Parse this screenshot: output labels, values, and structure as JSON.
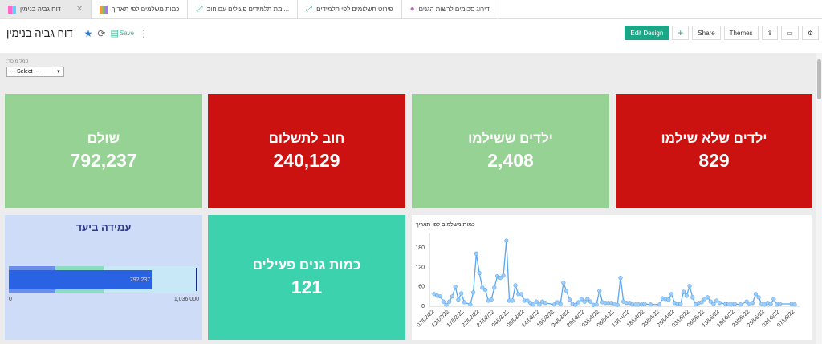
{
  "tabs": [
    {
      "label": "דוח גביה בנימין",
      "active": true,
      "icon": "dashboard-icon"
    },
    {
      "label": "כמות משלמים לפי תאריך",
      "icon": "bar-chart-icon"
    },
    {
      "label": "...ימת תלמידים פעילים עם חוב",
      "icon": "pivot-icon"
    },
    {
      "label": "פירוט תשלומים לפי תלמידים",
      "icon": "pivot-icon"
    },
    {
      "label": "דירוג סכומים לרשות הגנים",
      "icon": "query-icon"
    }
  ],
  "header": {
    "title": "דוח גביה בנימין",
    "save": "Save",
    "edit_design": "Edit Design",
    "add": "+",
    "share": "Share",
    "themes": "Themes"
  },
  "filter": {
    "label": "סמל מוסד:",
    "value": "--- Select ---"
  },
  "kpis": [
    {
      "label": "שולם",
      "value": "792,237",
      "color": "#95d293"
    },
    {
      "label": "חוב לתשלום",
      "value": "240,129",
      "color": "#cc1111"
    },
    {
      "label": "ילדים ששילמו",
      "value": "2,408",
      "color": "#95d293"
    },
    {
      "label": "ילדים שלא שילמו",
      "value": "829",
      "color": "#cc1111"
    }
  ],
  "gauge": {
    "title": "עמידה ביעד",
    "value": 792237,
    "value_label": "792,237",
    "min_label": "0",
    "max_label": "1,036,000",
    "max": 1036000
  },
  "active": {
    "label": "כמות גנים פעילים",
    "value": "121"
  },
  "chart_data": {
    "type": "line",
    "title": "כמות משלמים לפי תאריך",
    "ylim": [
      0,
      210
    ],
    "yticks": [
      0,
      60,
      120,
      180
    ],
    "xticks": [
      "07/02/22",
      "12/02/22",
      "17/02/22",
      "22/02/22",
      "27/02/22",
      "04/03/22",
      "09/03/22",
      "14/03/22",
      "19/03/22",
      "24/03/22",
      "29/03/22",
      "03/04/22",
      "08/04/22",
      "13/04/22",
      "18/04/22",
      "23/04/22",
      "28/04/22",
      "03/05/22",
      "08/05/22",
      "13/05/22",
      "18/05/22",
      "23/05/22",
      "28/05/22",
      "02/06/22",
      "07/06/22"
    ],
    "points": [
      [
        "07/02/22",
        35
      ],
      [
        "08/02/22",
        30
      ],
      [
        "09/02/22",
        28
      ],
      [
        "10/02/22",
        12
      ],
      [
        "11/02/22",
        2
      ],
      [
        "12/02/22",
        12
      ],
      [
        "13/02/22",
        28
      ],
      [
        "14/02/22",
        58
      ],
      [
        "15/02/22",
        18
      ],
      [
        "16/02/22",
        37
      ],
      [
        "17/02/22",
        10
      ],
      [
        "19/02/22",
        3
      ],
      [
        "20/02/22",
        40
      ],
      [
        "21/02/22",
        160
      ],
      [
        "22/02/22",
        100
      ],
      [
        "23/02/22",
        55
      ],
      [
        "24/02/22",
        48
      ],
      [
        "25/02/22",
        15
      ],
      [
        "26/02/22",
        18
      ],
      [
        "27/02/22",
        55
      ],
      [
        "28/02/22",
        90
      ],
      [
        "01/03/22",
        85
      ],
      [
        "02/03/22",
        92
      ],
      [
        "03/03/22",
        200
      ],
      [
        "04/03/22",
        15
      ],
      [
        "05/03/22",
        15
      ],
      [
        "06/03/22",
        62
      ],
      [
        "07/03/22",
        35
      ],
      [
        "08/03/22",
        35
      ],
      [
        "09/03/22",
        15
      ],
      [
        "10/03/22",
        15
      ],
      [
        "11/03/22",
        8
      ],
      [
        "12/03/22",
        3
      ],
      [
        "13/03/22",
        12
      ],
      [
        "14/03/22",
        3
      ],
      [
        "15/03/22",
        12
      ],
      [
        "16/03/22",
        8
      ],
      [
        "19/03/22",
        3
      ],
      [
        "20/03/22",
        10
      ],
      [
        "21/03/22",
        5
      ],
      [
        "22/03/22",
        70
      ],
      [
        "23/03/22",
        45
      ],
      [
        "24/03/22",
        18
      ],
      [
        "25/03/22",
        5
      ],
      [
        "26/03/22",
        2
      ],
      [
        "27/03/22",
        10
      ],
      [
        "28/03/22",
        20
      ],
      [
        "29/03/22",
        12
      ],
      [
        "30/03/22",
        20
      ],
      [
        "31/03/22",
        12
      ],
      [
        "01/04/22",
        2
      ],
      [
        "02/04/22",
        3
      ],
      [
        "03/04/22",
        45
      ],
      [
        "04/04/22",
        10
      ],
      [
        "05/04/22",
        8
      ],
      [
        "06/04/22",
        8
      ],
      [
        "07/04/22",
        8
      ],
      [
        "08/04/22",
        5
      ],
      [
        "09/04/22",
        2
      ],
      [
        "10/04/22",
        85
      ],
      [
        "11/04/22",
        12
      ],
      [
        "12/04/22",
        8
      ],
      [
        "13/04/22",
        8
      ],
      [
        "14/04/22",
        3
      ],
      [
        "15/04/22",
        3
      ],
      [
        "16/04/22",
        3
      ],
      [
        "17/04/22",
        3
      ],
      [
        "18/04/22",
        5
      ],
      [
        "20/04/22",
        3
      ],
      [
        "23/04/22",
        3
      ],
      [
        "24/04/22",
        22
      ],
      [
        "25/04/22",
        20
      ],
      [
        "26/04/22",
        18
      ],
      [
        "27/04/22",
        35
      ],
      [
        "28/04/22",
        8
      ],
      [
        "29/04/22",
        5
      ],
      [
        "30/04/22",
        5
      ],
      [
        "01/05/22",
        42
      ],
      [
        "02/05/22",
        30
      ],
      [
        "03/05/22",
        60
      ],
      [
        "04/05/22",
        25
      ],
      [
        "05/05/22",
        3
      ],
      [
        "06/05/22",
        8
      ],
      [
        "07/05/22",
        10
      ],
      [
        "08/05/22",
        20
      ],
      [
        "09/05/22",
        25
      ],
      [
        "10/05/22",
        12
      ],
      [
        "11/05/22",
        5
      ],
      [
        "12/05/22",
        15
      ],
      [
        "13/05/22",
        8
      ],
      [
        "15/05/22",
        5
      ],
      [
        "16/05/22",
        5
      ],
      [
        "17/05/22",
        3
      ],
      [
        "18/05/22",
        5
      ],
      [
        "20/05/22",
        3
      ],
      [
        "22/05/22",
        12
      ],
      [
        "23/05/22",
        5
      ],
      [
        "24/05/22",
        8
      ],
      [
        "25/05/22",
        35
      ],
      [
        "26/05/22",
        25
      ],
      [
        "27/05/22",
        5
      ],
      [
        "28/05/22",
        3
      ],
      [
        "29/05/22",
        8
      ],
      [
        "30/05/22",
        5
      ],
      [
        "31/05/22",
        20
      ],
      [
        "01/06/22",
        3
      ],
      [
        "02/06/22",
        5
      ],
      [
        "06/06/22",
        5
      ],
      [
        "07/06/22",
        3
      ]
    ],
    "line_color": "#5aa6f0",
    "marker_color": "#9fcdf7"
  }
}
